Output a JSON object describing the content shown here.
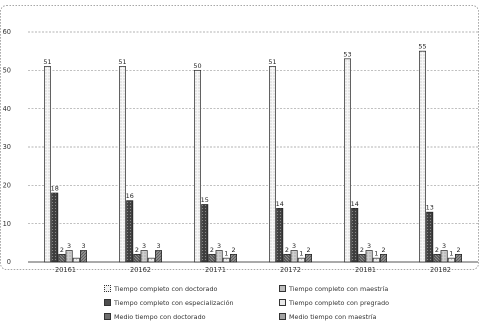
{
  "chart_data": {
    "type": "bar",
    "categories": [
      "20161",
      "20162",
      "20171",
      "20172",
      "20181",
      "20182"
    ],
    "ylim": [
      0,
      60
    ],
    "yticks": [
      0,
      10,
      20,
      30,
      40,
      50,
      60
    ],
    "grid": true,
    "legend_position": "bottom",
    "series": [
      {
        "name": "Tiempo completo con doctorado",
        "values": [
          51,
          51,
          50,
          51,
          53,
          55
        ]
      },
      {
        "name": "Tiempo completo con especialización",
        "values": [
          18,
          16,
          15,
          14,
          14,
          13
        ]
      },
      {
        "name": "Medio tiempo con doctorado",
        "values": [
          2,
          2,
          2,
          2,
          2,
          2
        ]
      },
      {
        "name": "Tiempo completo con maestría",
        "values": [
          3,
          3,
          3,
          3,
          3,
          3
        ]
      },
      {
        "name": "Tiempo completo con pregrado",
        "values": [
          1,
          1,
          1,
          1,
          1,
          1
        ]
      },
      {
        "name": "Medio tiempo con maestría",
        "values": [
          3,
          3,
          2,
          2,
          2,
          2
        ]
      }
    ],
    "data_labels": [
      [
        "51",
        "18",
        "2",
        "3",
        "",
        "3"
      ],
      [
        "51",
        "16",
        "2",
        "3",
        "",
        "3"
      ],
      [
        "50",
        "15",
        "2",
        "3",
        "1",
        "2"
      ],
      [
        "51",
        "14",
        "2",
        "3",
        "1",
        "2"
      ],
      [
        "53",
        "14",
        "2",
        "3",
        "1",
        "2"
      ],
      [
        "55",
        "13",
        "2",
        "3",
        "1",
        "2"
      ]
    ],
    "colors": [
      "#f3f3f3",
      "#4d4d4d",
      "#6f6f6f",
      "#bdbdbd",
      "#e8e8e8",
      "#a3a3a3"
    ]
  },
  "legend": [
    {
      "label": "Tiempo completo con doctorado"
    },
    {
      "label": "Tiempo completo con maestría"
    },
    {
      "label": "Tiempo completo con especialización"
    },
    {
      "label": "Tiempo completo con pregrado"
    },
    {
      "label": "Medio tiempo con doctorado"
    },
    {
      "label": "Medio tiempo con maestría"
    }
  ]
}
